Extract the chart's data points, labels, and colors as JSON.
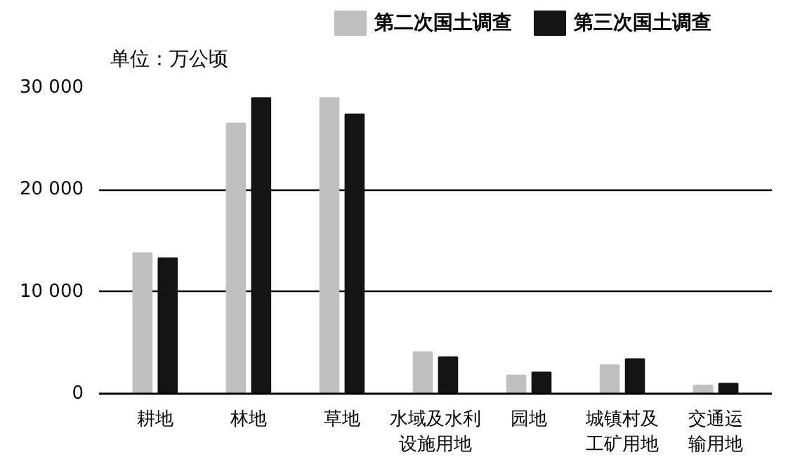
{
  "chart_data": {
    "type": "bar",
    "ylabel": "单位：万公顷",
    "categories": [
      "耕地",
      "林地",
      "草地",
      "水域及水利设施用地",
      "园地",
      "城镇村及工矿用地",
      "交通运输用地"
    ],
    "series": [
      {
        "name": "第二次国土调查",
        "color": "#c0c0c0",
        "values": [
          13800,
          26500,
          29000,
          4100,
          1800,
          2800,
          800
        ]
      },
      {
        "name": "第三次国土调查",
        "color": "#141414",
        "values": [
          13300,
          29000,
          27400,
          3600,
          2100,
          3400,
          1000
        ]
      }
    ],
    "ylim": [
      0,
      30000
    ],
    "yticks": [
      {
        "value": 0,
        "label": "0"
      },
      {
        "value": 10000,
        "label": "10 000"
      },
      {
        "value": 20000,
        "label": "20 000"
      },
      {
        "value": 30000,
        "label": "30 000"
      }
    ],
    "grid": "y",
    "legend": "top"
  }
}
